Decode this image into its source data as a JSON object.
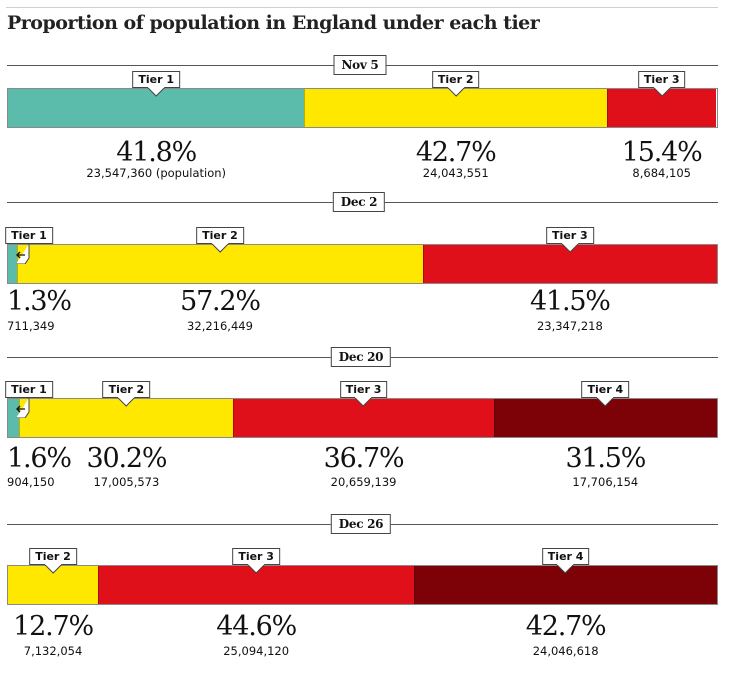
{
  "title": "Proportion of population in England under each tier",
  "colors": {
    "Tier 1": "#5bbcab",
    "Tier 2": "#ffe800",
    "Tier 3": "#e0101a",
    "Tier 4": "#7c0208"
  },
  "chart_data": {
    "type": "bar",
    "orientation": "horizontal-stacked-100",
    "title": "Proportion of population in England under each tier",
    "unit": "% of population",
    "series": [
      "Tier 1",
      "Tier 2",
      "Tier 3",
      "Tier 4"
    ],
    "snapshots": [
      {
        "date": "Nov 5",
        "segments": [
          {
            "tier": "Tier 1",
            "value": 41.8,
            "pct_label": "41.8%",
            "population": "23,547,360 (population)"
          },
          {
            "tier": "Tier 2",
            "value": 42.7,
            "pct_label": "42.7%",
            "population": "24,043,551"
          },
          {
            "tier": "Tier 3",
            "value": 15.4,
            "pct_label": "15.4%",
            "population": "8,684,105"
          }
        ]
      },
      {
        "date": "Dec 2",
        "segments": [
          {
            "tier": "Tier 1",
            "value": 1.3,
            "pct_label": "1.3%",
            "population": "711,349"
          },
          {
            "tier": "Tier 2",
            "value": 57.2,
            "pct_label": "57.2%",
            "population": "32,216,449"
          },
          {
            "tier": "Tier 3",
            "value": 41.5,
            "pct_label": "41.5%",
            "population": "23,347,218"
          }
        ]
      },
      {
        "date": "Dec 20",
        "segments": [
          {
            "tier": "Tier 1",
            "value": 1.6,
            "pct_label": "1.6%",
            "population": "904,150"
          },
          {
            "tier": "Tier 2",
            "value": 30.2,
            "pct_label": "30.2%",
            "population": "17,005,573"
          },
          {
            "tier": "Tier 3",
            "value": 36.7,
            "pct_label": "36.7%",
            "population": "20,659,139"
          },
          {
            "tier": "Tier 4",
            "value": 31.5,
            "pct_label": "31.5%",
            "population": "17,706,154"
          }
        ]
      },
      {
        "date": "Dec 26",
        "segments": [
          {
            "tier": "Tier 2",
            "value": 12.7,
            "pct_label": "12.7%",
            "population": "7,132,054"
          },
          {
            "tier": "Tier 3",
            "value": 44.6,
            "pct_label": "44.6%",
            "population": "25,094,120"
          },
          {
            "tier": "Tier 4",
            "value": 42.7,
            "pct_label": "42.7%",
            "population": "24,046,618"
          }
        ]
      }
    ]
  }
}
